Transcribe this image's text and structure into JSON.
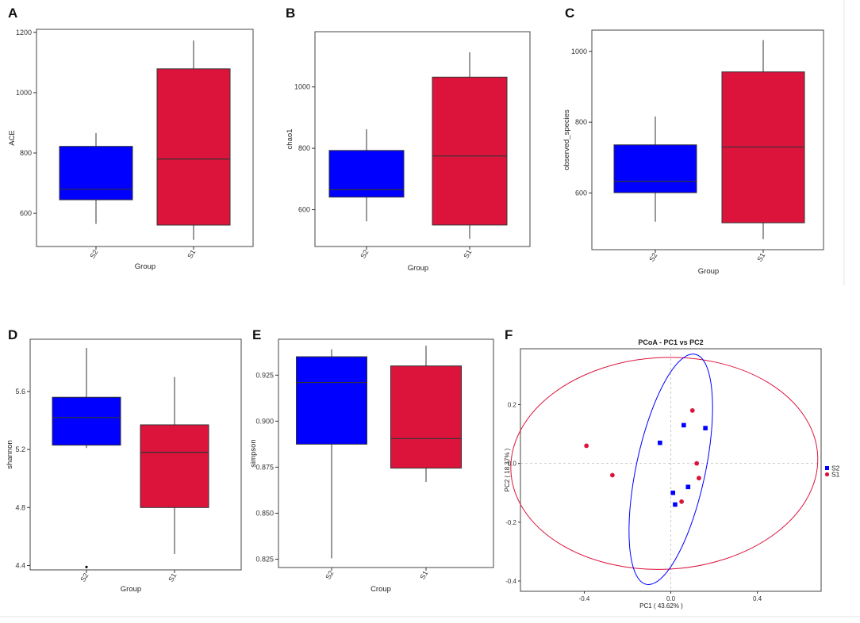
{
  "colors": {
    "S2": "#0000ff",
    "S1": "#dc143c",
    "axis": "#333333",
    "median": "#333333",
    "frame": "#444444"
  },
  "chart_data": [
    {
      "panel": "A",
      "type": "box",
      "xlabel": "Group",
      "ylabel": "ACE",
      "categories": [
        "S2",
        "S1"
      ],
      "ylim": [
        490,
        1210
      ],
      "yticks": [
        600,
        800,
        1000,
        1200
      ],
      "boxes": [
        {
          "group": "S2",
          "min": 565,
          "q1": 645,
          "median": 680,
          "q3": 822,
          "max": 866,
          "outliers": []
        },
        {
          "group": "S1",
          "min": 512,
          "q1": 561,
          "median": 780,
          "q3": 1079,
          "max": 1173,
          "outliers": []
        }
      ]
    },
    {
      "panel": "B",
      "type": "box",
      "xlabel": "Group",
      "ylabel": "chao1",
      "categories": [
        "S2",
        "S1"
      ],
      "ylim": [
        480,
        1180
      ],
      "yticks": [
        600,
        800,
        1000
      ],
      "boxes": [
        {
          "group": "S2",
          "min": 562,
          "q1": 641,
          "median": 665,
          "q3": 793,
          "max": 862,
          "outliers": []
        },
        {
          "group": "S1",
          "min": 505,
          "q1": 550,
          "median": 775,
          "q3": 1032,
          "max": 1113,
          "outliers": []
        }
      ]
    },
    {
      "panel": "C",
      "type": "box",
      "xlabel": "Group",
      "ylabel": "observed_species",
      "categories": [
        "S2",
        "S1"
      ],
      "ylim": [
        440,
        1060
      ],
      "yticks": [
        600,
        800,
        1000
      ],
      "boxes": [
        {
          "group": "S2",
          "min": 519,
          "q1": 601,
          "median": 633,
          "q3": 736,
          "max": 816,
          "outliers": []
        },
        {
          "group": "S1",
          "min": 470,
          "q1": 516,
          "median": 730,
          "q3": 942,
          "max": 1032,
          "outliers": []
        }
      ]
    },
    {
      "panel": "D",
      "type": "box",
      "xlabel": "Group",
      "ylabel": "shannon",
      "categories": [
        "S2",
        "S1"
      ],
      "ylim": [
        4.37,
        5.96
      ],
      "yticks": [
        4.4,
        4.8,
        5.2,
        5.6
      ],
      "ytick_labels": [
        "4.4",
        "4.8",
        "5.2",
        "5.6"
      ],
      "boxes": [
        {
          "group": "S2",
          "min": 5.21,
          "q1": 5.23,
          "median": 5.42,
          "q3": 5.56,
          "max": 5.9,
          "outliers": [
            4.39
          ]
        },
        {
          "group": "S1",
          "min": 4.48,
          "q1": 4.8,
          "median": 5.18,
          "q3": 5.37,
          "max": 5.7,
          "outliers": []
        }
      ]
    },
    {
      "panel": "E",
      "type": "box",
      "xlabel": "Croup",
      "ylabel": "simpson",
      "categories": [
        "S2",
        "S1"
      ],
      "ylim": [
        0.8205,
        0.9445
      ],
      "yticks": [
        0.825,
        0.85,
        0.875,
        0.9,
        0.925
      ],
      "ytick_labels": [
        "0.825",
        "0.850",
        "0.875",
        "0.900",
        "0.925"
      ],
      "boxes": [
        {
          "group": "S2",
          "min": 0.8255,
          "q1": 0.8875,
          "median": 0.921,
          "q3": 0.935,
          "max": 0.939,
          "outliers": []
        },
        {
          "group": "S1",
          "min": 0.867,
          "q1": 0.8745,
          "median": 0.8905,
          "q3": 0.93,
          "max": 0.941,
          "outliers": []
        }
      ]
    },
    {
      "panel": "F",
      "type": "scatter",
      "title": "PCoA - PC1 vs PC2",
      "xlabel": "PC1 ( 43.62% )",
      "ylabel": "PC2 ( 18.37% )",
      "xlim": [
        -0.695,
        0.695
      ],
      "ylim": [
        -0.435,
        0.39
      ],
      "xticks": [
        -0.4,
        0.0,
        0.4
      ],
      "xtick_labels": [
        "-0.4",
        "0.0",
        "0.4"
      ],
      "yticks": [
        -0.4,
        -0.2,
        0.0,
        0.2
      ],
      "ytick_labels": [
        "-0.4",
        "-0.2",
        "0.0",
        "0.2"
      ],
      "legend": [
        "S2",
        "S1"
      ],
      "legend_position": "right",
      "series": [
        {
          "name": "S2",
          "marker": "square",
          "points": [
            [
              -0.05,
              0.07
            ],
            [
              0.06,
              0.13
            ],
            [
              0.16,
              0.12
            ],
            [
              0.08,
              -0.08
            ],
            [
              0.01,
              -0.1
            ],
            [
              0.02,
              -0.14
            ]
          ]
        },
        {
          "name": "S1",
          "marker": "circle",
          "points": [
            [
              -0.39,
              0.06
            ],
            [
              -0.27,
              -0.04
            ],
            [
              0.1,
              0.18
            ],
            [
              0.12,
              0.0
            ],
            [
              0.13,
              -0.05
            ],
            [
              0.05,
              -0.13
            ]
          ]
        }
      ],
      "ellipses": [
        {
          "group": "S1",
          "cx": -0.03,
          "cy": 0.0,
          "rx": 0.71,
          "ry": 0.36,
          "angle": -3
        },
        {
          "group": "S2",
          "cx": 0.0,
          "cy": -0.02,
          "rx": 0.16,
          "ry": 0.4,
          "angle": 12
        }
      ]
    }
  ]
}
